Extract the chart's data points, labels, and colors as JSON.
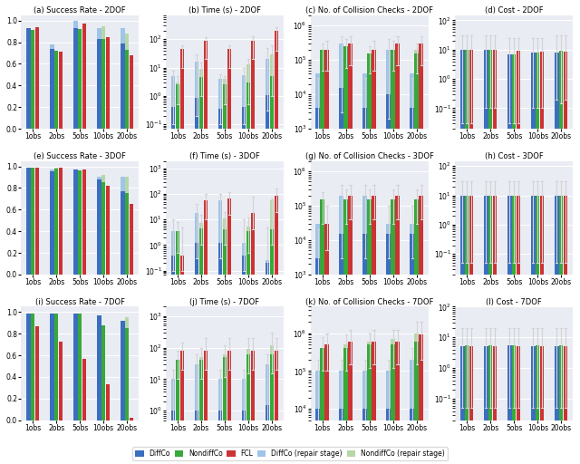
{
  "categories": [
    "1obs",
    "2obs",
    "5obs",
    "10obs",
    "20obs"
  ],
  "titles": {
    "a": "(a) Success Rate - 2DOF",
    "b": "(b) Time (s) - 2DOF",
    "c": "(c) No. of Collision Checks - 2DOF",
    "d": "(d) Cost - 2DOF",
    "e": "(e) Success Rate - 3DOF",
    "f": "(f) Time (s) - 3DOF",
    "g": "(g) No. of Collision Checks - 3DOF",
    "h": "(h) Cost - 3DOF",
    "i": "(i) Success Rate - 7DOF",
    "j": "(j) Time (s) - 7DOF",
    "k": "(k) No. of Collision Checks - 7DOF",
    "l": "(l) Cost - 7DOF"
  },
  "colors": {
    "diffco": "#3a6ebf",
    "diffco_repair": "#9fc5e8",
    "nondiffco": "#38a838",
    "nondiffco_repair": "#b6d7a8",
    "fcl": "#cc3333"
  },
  "bg_color": "#eaecf4",
  "success_2dof": {
    "diffco": [
      0.93,
      0.74,
      0.93,
      0.83,
      0.79
    ],
    "diffco_repair": [
      0.93,
      0.78,
      1.0,
      0.93,
      0.93
    ],
    "nondiffco": [
      0.91,
      0.72,
      0.92,
      0.83,
      0.73
    ],
    "nondiffco_repair": [
      0.91,
      0.72,
      0.92,
      0.95,
      0.88
    ],
    "fcl": [
      0.94,
      0.71,
      0.97,
      0.85,
      0.68
    ]
  },
  "success_3dof": {
    "diffco": [
      0.99,
      0.95,
      0.97,
      0.88,
      0.77
    ],
    "diffco_repair": [
      0.99,
      0.97,
      0.97,
      0.9,
      0.9
    ],
    "nondiffco": [
      0.99,
      0.98,
      0.96,
      0.85,
      0.75
    ],
    "nondiffco_repair": [
      0.99,
      0.99,
      0.96,
      0.92,
      0.9
    ],
    "fcl": [
      0.99,
      0.99,
      0.97,
      0.82,
      0.65
    ]
  },
  "success_7dof": {
    "diffco": [
      0.99,
      0.99,
      0.99,
      0.97,
      0.92
    ],
    "diffco_repair": [
      0.99,
      0.99,
      0.99,
      0.97,
      0.92
    ],
    "nondiffco": [
      0.99,
      0.99,
      0.99,
      0.88,
      0.85
    ],
    "nondiffco_repair": [
      0.99,
      0.99,
      0.99,
      0.88,
      0.95
    ],
    "fcl": [
      0.87,
      0.73,
      0.57,
      0.33,
      0.02
    ]
  },
  "time_2dof": {
    "diffco": [
      0.4,
      0.85,
      0.35,
      0.4,
      1.1
    ],
    "diffco_repair": [
      5.0,
      16.0,
      4.0,
      5.5,
      20.0
    ],
    "nondiffco": [
      2.5,
      4.5,
      2.5,
      3.0,
      5.0
    ],
    "nondiffco_repair": [
      3.0,
      9.0,
      4.0,
      13.0,
      30.0
    ],
    "fcl": [
      45.0,
      90.0,
      45.0,
      90.0,
      190.0
    ],
    "diffco_err_low": [
      0.1,
      0.2,
      0.1,
      0.1,
      0.3
    ],
    "diffco_err_high": [
      8.0,
      30.0,
      6.0,
      10.0,
      50.0
    ],
    "nondiffco_err_low": [
      0.5,
      1.0,
      0.5,
      0.5,
      1.0
    ],
    "nondiffco_err_high": [
      5.0,
      15.0,
      5.0,
      20.0,
      60.0
    ],
    "fcl_err_low": [
      10.0,
      20.0,
      10.0,
      20.0,
      40.0
    ],
    "fcl_err_high": [
      60.0,
      120.0,
      60.0,
      130.0,
      260.0
    ]
  },
  "time_3dof": {
    "diffco": [
      0.4,
      1.2,
      1.2,
      0.4,
      0.2
    ],
    "diffco_repair": [
      3.5,
      18.0,
      55.0,
      1.2,
      0.25
    ],
    "nondiffco": [
      3.5,
      4.5,
      4.0,
      3.5,
      4.0
    ],
    "nondiffco_repair": [
      3.5,
      7.5,
      11.0,
      5.5,
      55.0
    ],
    "fcl": [
      0.4,
      55.0,
      65.0,
      18.0,
      85.0
    ],
    "diffco_err_low": [
      0.1,
      0.3,
      0.3,
      0.1,
      0.05
    ],
    "diffco_err_high": [
      10.0,
      40.0,
      100.0,
      10.0,
      5.0
    ],
    "nondiffco_err_low": [
      0.5,
      1.0,
      1.0,
      0.5,
      1.0
    ],
    "nondiffco_err_high": [
      8.0,
      15.0,
      20.0,
      12.0,
      70.0
    ],
    "fcl_err_low": [
      0.1,
      10.0,
      15.0,
      4.0,
      20.0
    ],
    "fcl_err_high": [
      5.0,
      100.0,
      120.0,
      80.0,
      160.0
    ]
  },
  "time_7dof": {
    "diffco": [
      1.0,
      1.0,
      1.0,
      1.0,
      1.5
    ],
    "diffco_repair": [
      10.0,
      30.0,
      10.0,
      10.0,
      30.0
    ],
    "nondiffco": [
      40.0,
      40.0,
      50.0,
      60.0,
      60.0
    ],
    "nondiffco_repair": [
      40.0,
      50.0,
      60.0,
      90.0,
      120.0
    ],
    "fcl": [
      80.0,
      80.0,
      80.0,
      80.0,
      80.0
    ],
    "diffco_err_low": [
      0.2,
      0.2,
      0.2,
      0.2,
      0.3
    ],
    "diffco_err_high": [
      20.0,
      60.0,
      20.0,
      20.0,
      60.0
    ],
    "nondiffco_err_low": [
      10.0,
      10.0,
      12.0,
      15.0,
      15.0
    ],
    "nondiffco_err_high": [
      80.0,
      100.0,
      120.0,
      200.0,
      300.0
    ],
    "fcl_err_low": [
      20.0,
      20.0,
      20.0,
      20.0,
      20.0
    ],
    "fcl_err_high": [
      150.0,
      200.0,
      200.0,
      200.0,
      200.0
    ]
  },
  "checks_2dof": {
    "diffco": [
      4000,
      15000,
      4000,
      10000,
      4000
    ],
    "diffco_repair": [
      40000,
      300000,
      40000,
      200000,
      40000
    ],
    "nondiffco": [
      200000,
      250000,
      150000,
      200000,
      150000
    ],
    "nondiffco_repair": [
      200000,
      250000,
      150000,
      200000,
      200000
    ],
    "fcl": [
      200000,
      300000,
      200000,
      300000,
      300000
    ],
    "diffco_err_low": [
      1000,
      3000,
      1000,
      2000,
      1000
    ],
    "diffco_err_high": [
      30000,
      500000,
      30000,
      400000,
      30000
    ],
    "nondiffco_err_low": [
      50000,
      60000,
      40000,
      50000,
      40000
    ],
    "nondiffco_err_high": [
      300000,
      400000,
      250000,
      350000,
      300000
    ],
    "fcl_err_low": [
      50000,
      70000,
      50000,
      70000,
      70000
    ],
    "fcl_err_high": [
      350000,
      500000,
      350000,
      500000,
      500000
    ]
  },
  "checks_3dof": {
    "diffco": [
      3000,
      15000,
      15000,
      15000,
      15000
    ],
    "diffco_repair": [
      30000,
      200000,
      200000,
      30000,
      30000
    ],
    "nondiffco": [
      150000,
      150000,
      150000,
      150000,
      150000
    ],
    "nondiffco_repair": [
      150000,
      150000,
      150000,
      150000,
      150000
    ],
    "fcl": [
      30000,
      200000,
      200000,
      200000,
      200000
    ],
    "diffco_err_low": [
      500,
      3000,
      3000,
      3000,
      3000
    ],
    "diffco_err_high": [
      20000,
      400000,
      400000,
      100000,
      100000
    ],
    "nondiffco_err_low": [
      30000,
      30000,
      30000,
      30000,
      30000
    ],
    "nondiffco_err_high": [
      250000,
      300000,
      300000,
      300000,
      300000
    ],
    "fcl_err_low": [
      5000,
      40000,
      40000,
      40000,
      40000
    ],
    "fcl_err_high": [
      100000,
      400000,
      400000,
      400000,
      400000
    ]
  },
  "checks_7dof": {
    "diffco": [
      10000,
      10000,
      10000,
      10000,
      10000
    ],
    "diffco_repair": [
      100000,
      100000,
      100000,
      100000,
      200000
    ],
    "nondiffco": [
      400000,
      400000,
      500000,
      500000,
      600000
    ],
    "nondiffco_repair": [
      400000,
      500000,
      600000,
      700000,
      1000000
    ],
    "fcl": [
      500000,
      600000,
      600000,
      600000,
      900000
    ],
    "diffco_err_low": [
      2000,
      2000,
      2000,
      2000,
      2000
    ],
    "diffco_err_high": [
      200000,
      200000,
      200000,
      200000,
      400000
    ],
    "nondiffco_err_low": [
      100000,
      100000,
      120000,
      120000,
      150000
    ],
    "nondiffco_err_high": [
      800000,
      900000,
      1000000,
      1200000,
      2000000
    ],
    "fcl_err_low": [
      100000,
      150000,
      150000,
      150000,
      200000
    ],
    "fcl_err_high": [
      1000000,
      1200000,
      1200000,
      1200000,
      2000000
    ]
  },
  "cost_2dof": {
    "diffco": [
      10.0,
      10.0,
      7.0,
      8.0,
      8.0
    ],
    "nondiffco": [
      10.0,
      10.0,
      7.0,
      8.0,
      9.0
    ],
    "fcl": [
      10.0,
      10.0,
      9.0,
      8.5,
      8.5
    ],
    "diffco_err_low": [
      0.03,
      0.1,
      0.03,
      0.1,
      0.2
    ],
    "diffco_err_high": [
      30.0,
      30.0,
      25.0,
      25.0,
      30.0
    ],
    "nondiffco_err_low": [
      0.03,
      0.1,
      0.03,
      0.1,
      0.15
    ],
    "nondiffco_err_high": [
      30.0,
      30.0,
      25.0,
      25.0,
      30.0
    ],
    "fcl_err_low": [
      0.03,
      0.1,
      0.03,
      0.1,
      0.2
    ],
    "fcl_err_high": [
      30.0,
      30.0,
      25.0,
      25.0,
      30.0
    ]
  },
  "cost_3dof": {
    "diffco": [
      10.0,
      10.0,
      10.0,
      10.0,
      10.0
    ],
    "nondiffco": [
      10.0,
      10.0,
      10.0,
      10.0,
      10.0
    ],
    "fcl": [
      10.0,
      10.0,
      10.0,
      10.0,
      10.0
    ],
    "diffco_err_low": [
      0.05,
      0.05,
      0.05,
      0.05,
      0.05
    ],
    "diffco_err_high": [
      30.0,
      30.0,
      30.0,
      30.0,
      30.0
    ],
    "nondiffco_err_low": [
      0.05,
      0.05,
      0.05,
      0.05,
      0.05
    ],
    "nondiffco_err_high": [
      30.0,
      30.0,
      30.0,
      30.0,
      30.0
    ],
    "fcl_err_low": [
      0.05,
      0.05,
      0.05,
      0.05,
      0.05
    ],
    "fcl_err_high": [
      30.0,
      30.0,
      30.0,
      30.0,
      30.0
    ]
  },
  "cost_7dof": {
    "diffco": [
      5.0,
      5.0,
      5.5,
      5.0,
      5.0
    ],
    "nondiffco": [
      5.5,
      5.5,
      5.5,
      5.5,
      5.5
    ],
    "fcl": [
      5.0,
      5.0,
      5.0,
      5.0,
      5.0
    ],
    "diffco_err_low": [
      0.05,
      0.05,
      0.05,
      0.05,
      0.05
    ],
    "diffco_err_high": [
      20.0,
      20.0,
      20.0,
      20.0,
      20.0
    ],
    "nondiffco_err_low": [
      0.05,
      0.05,
      0.05,
      0.05,
      0.05
    ],
    "nondiffco_err_high": [
      20.0,
      20.0,
      20.0,
      20.0,
      20.0
    ],
    "fcl_err_low": [
      0.05,
      0.05,
      0.05,
      0.05,
      0.05
    ],
    "fcl_err_high": [
      20.0,
      20.0,
      20.0,
      20.0,
      20.0
    ]
  }
}
